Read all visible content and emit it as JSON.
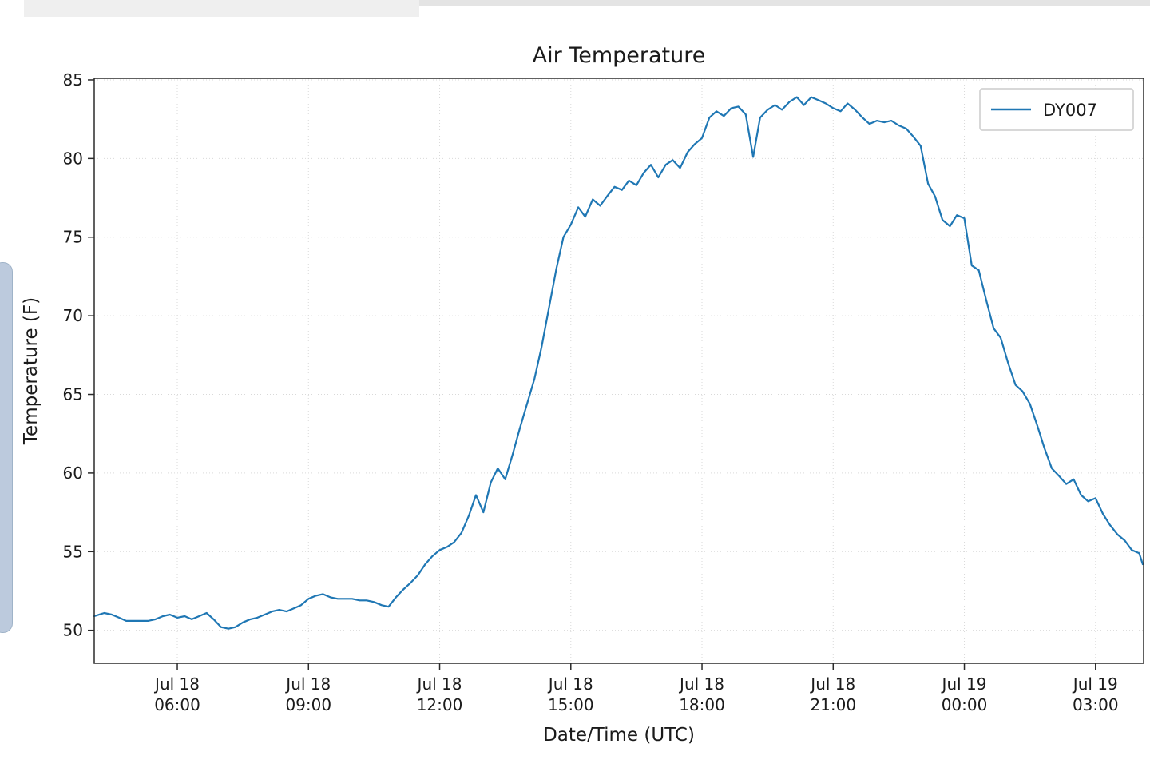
{
  "chart_data": {
    "type": "line",
    "title": "Air Temperature",
    "xlabel": "Date/Time (UTC)",
    "ylabel": "Temperature (F)",
    "grid": true,
    "legend_position": "upper right",
    "x_unit": "hours since Jul 18 00:00 UTC",
    "xlim": [
      4.1,
      28.1
    ],
    "ylim": [
      47.9,
      85.1
    ],
    "yticks": [
      50,
      55,
      60,
      65,
      70,
      75,
      80,
      85
    ],
    "xticks": [
      {
        "hour": 6,
        "line1": "Jul 18",
        "line2": "06:00"
      },
      {
        "hour": 9,
        "line1": "Jul 18",
        "line2": "09:00"
      },
      {
        "hour": 12,
        "line1": "Jul 18",
        "line2": "12:00"
      },
      {
        "hour": 15,
        "line1": "Jul 18",
        "line2": "15:00"
      },
      {
        "hour": 18,
        "line1": "Jul 18",
        "line2": "18:00"
      },
      {
        "hour": 21,
        "line1": "Jul 18",
        "line2": "21:00"
      },
      {
        "hour": 24,
        "line1": "Jul 19",
        "line2": "00:00"
      },
      {
        "hour": 27,
        "line1": "Jul 19",
        "line2": "03:00"
      }
    ],
    "series": [
      {
        "name": "DY007",
        "color": "#1f77b4",
        "points": [
          [
            4.1,
            50.9
          ],
          [
            4.33,
            51.1
          ],
          [
            4.5,
            51.0
          ],
          [
            4.67,
            50.8
          ],
          [
            4.83,
            50.6
          ],
          [
            5.0,
            50.6
          ],
          [
            5.17,
            50.6
          ],
          [
            5.33,
            50.6
          ],
          [
            5.5,
            50.7
          ],
          [
            5.67,
            50.9
          ],
          [
            5.83,
            51.0
          ],
          [
            6.0,
            50.8
          ],
          [
            6.17,
            50.9
          ],
          [
            6.33,
            50.7
          ],
          [
            6.5,
            50.9
          ],
          [
            6.67,
            51.1
          ],
          [
            6.83,
            50.7
          ],
          [
            7.0,
            50.2
          ],
          [
            7.17,
            50.1
          ],
          [
            7.33,
            50.2
          ],
          [
            7.5,
            50.5
          ],
          [
            7.67,
            50.7
          ],
          [
            7.83,
            50.8
          ],
          [
            8.0,
            51.0
          ],
          [
            8.17,
            51.2
          ],
          [
            8.33,
            51.3
          ],
          [
            8.5,
            51.2
          ],
          [
            8.67,
            51.4
          ],
          [
            8.83,
            51.6
          ],
          [
            9.0,
            52.0
          ],
          [
            9.17,
            52.2
          ],
          [
            9.33,
            52.3
          ],
          [
            9.5,
            52.1
          ],
          [
            9.67,
            52.0
          ],
          [
            9.83,
            52.0
          ],
          [
            10.0,
            52.0
          ],
          [
            10.17,
            51.9
          ],
          [
            10.33,
            51.9
          ],
          [
            10.5,
            51.8
          ],
          [
            10.67,
            51.6
          ],
          [
            10.83,
            51.5
          ],
          [
            11.0,
            52.1
          ],
          [
            11.17,
            52.6
          ],
          [
            11.33,
            53.0
          ],
          [
            11.5,
            53.5
          ],
          [
            11.67,
            54.2
          ],
          [
            11.83,
            54.7
          ],
          [
            12.0,
            55.1
          ],
          [
            12.17,
            55.3
          ],
          [
            12.33,
            55.6
          ],
          [
            12.5,
            56.2
          ],
          [
            12.67,
            57.3
          ],
          [
            12.83,
            58.6
          ],
          [
            13.0,
            57.5
          ],
          [
            13.17,
            59.4
          ],
          [
            13.33,
            60.3
          ],
          [
            13.5,
            59.6
          ],
          [
            13.67,
            61.2
          ],
          [
            13.83,
            62.8
          ],
          [
            14.0,
            64.4
          ],
          [
            14.17,
            66.0
          ],
          [
            14.33,
            68.0
          ],
          [
            14.5,
            70.5
          ],
          [
            14.67,
            73.0
          ],
          [
            14.83,
            75.0
          ],
          [
            15.0,
            75.8
          ],
          [
            15.17,
            76.9
          ],
          [
            15.33,
            76.3
          ],
          [
            15.5,
            77.4
          ],
          [
            15.67,
            77.0
          ],
          [
            15.83,
            77.6
          ],
          [
            16.0,
            78.2
          ],
          [
            16.17,
            78.0
          ],
          [
            16.33,
            78.6
          ],
          [
            16.5,
            78.3
          ],
          [
            16.67,
            79.1
          ],
          [
            16.83,
            79.6
          ],
          [
            17.0,
            78.8
          ],
          [
            17.17,
            79.6
          ],
          [
            17.33,
            79.9
          ],
          [
            17.5,
            79.4
          ],
          [
            17.67,
            80.4
          ],
          [
            17.83,
            80.9
          ],
          [
            18.0,
            81.3
          ],
          [
            18.17,
            82.6
          ],
          [
            18.33,
            83.0
          ],
          [
            18.5,
            82.7
          ],
          [
            18.67,
            83.2
          ],
          [
            18.83,
            83.3
          ],
          [
            19.0,
            82.8
          ],
          [
            19.17,
            80.1
          ],
          [
            19.33,
            82.6
          ],
          [
            19.5,
            83.1
          ],
          [
            19.67,
            83.4
          ],
          [
            19.83,
            83.1
          ],
          [
            20.0,
            83.6
          ],
          [
            20.17,
            83.9
          ],
          [
            20.33,
            83.4
          ],
          [
            20.5,
            83.9
          ],
          [
            20.67,
            83.7
          ],
          [
            20.83,
            83.5
          ],
          [
            21.0,
            83.2
          ],
          [
            21.17,
            83.0
          ],
          [
            21.33,
            83.5
          ],
          [
            21.5,
            83.1
          ],
          [
            21.67,
            82.6
          ],
          [
            21.83,
            82.2
          ],
          [
            22.0,
            82.4
          ],
          [
            22.17,
            82.3
          ],
          [
            22.33,
            82.4
          ],
          [
            22.5,
            82.1
          ],
          [
            22.67,
            81.9
          ],
          [
            22.83,
            81.4
          ],
          [
            23.0,
            80.8
          ],
          [
            23.17,
            78.4
          ],
          [
            23.33,
            77.6
          ],
          [
            23.5,
            76.1
          ],
          [
            23.67,
            75.7
          ],
          [
            23.83,
            76.4
          ],
          [
            24.0,
            76.2
          ],
          [
            24.17,
            73.2
          ],
          [
            24.33,
            72.9
          ],
          [
            24.5,
            71.0
          ],
          [
            24.67,
            69.2
          ],
          [
            24.83,
            68.6
          ],
          [
            25.0,
            67.0
          ],
          [
            25.17,
            65.6
          ],
          [
            25.33,
            65.2
          ],
          [
            25.5,
            64.4
          ],
          [
            25.67,
            63.0
          ],
          [
            25.83,
            61.6
          ],
          [
            26.0,
            60.3
          ],
          [
            26.17,
            59.8
          ],
          [
            26.33,
            59.3
          ],
          [
            26.5,
            59.6
          ],
          [
            26.67,
            58.6
          ],
          [
            26.83,
            58.2
          ],
          [
            27.0,
            58.4
          ],
          [
            27.17,
            57.4
          ],
          [
            27.33,
            56.7
          ],
          [
            27.5,
            56.1
          ],
          [
            27.67,
            55.7
          ],
          [
            27.83,
            55.1
          ],
          [
            28.0,
            54.9
          ],
          [
            28.08,
            54.2
          ]
        ]
      }
    ]
  },
  "legend": {
    "label": "DY007"
  }
}
